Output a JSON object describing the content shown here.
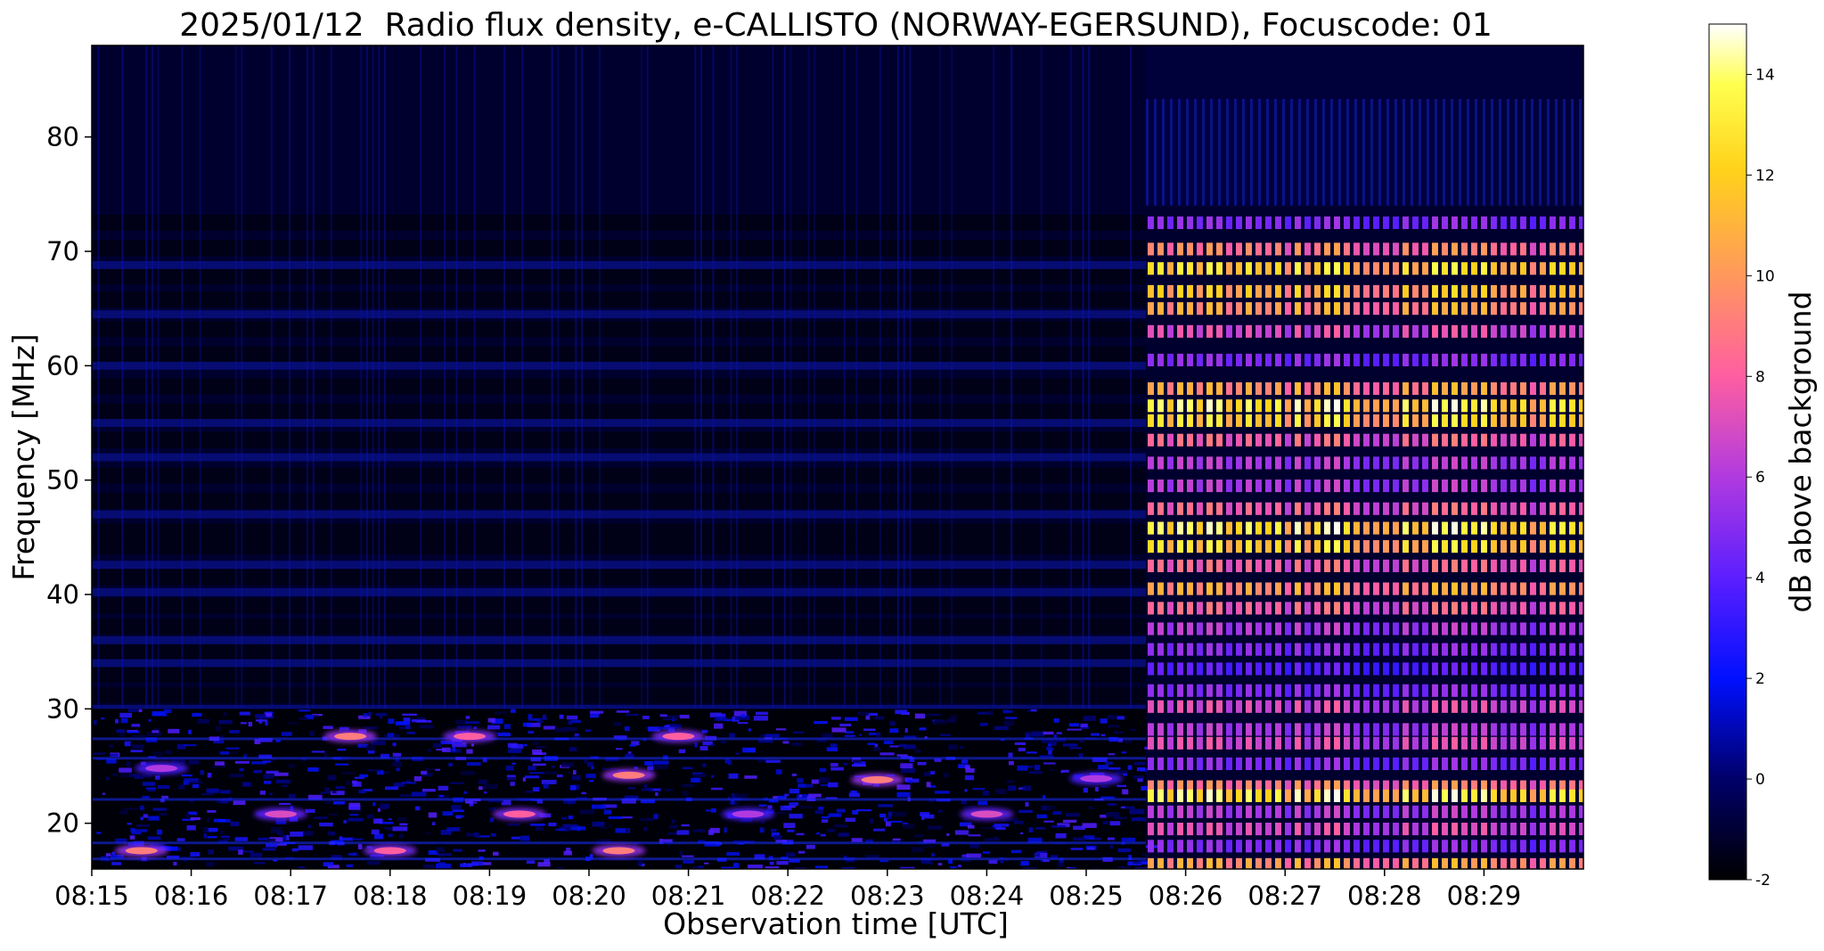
{
  "chart_data": {
    "type": "heatmap",
    "title": "2025/01/12  Radio flux density, e-CALLISTO (NORWAY-EGERSUND), Focuscode: 01",
    "xlabel": "Observation time [UTC]",
    "ylabel": "Frequency [MHz]",
    "x_ticks": [
      "08:15",
      "08:16",
      "08:17",
      "08:18",
      "08:19",
      "08:20",
      "08:21",
      "08:22",
      "08:23",
      "08:24",
      "08:25",
      "08:26",
      "08:27",
      "08:28",
      "08:29"
    ],
    "x_range_minutes": [
      0,
      15
    ],
    "y_ticks": [
      20,
      30,
      40,
      50,
      60,
      70,
      80
    ],
    "ylim": [
      16,
      88
    ],
    "colorbar": {
      "label": "dB above background",
      "ticks": [
        -2,
        0,
        2,
        4,
        6,
        8,
        10,
        12,
        14
      ],
      "range": [
        -2,
        15
      ],
      "colormap": "gnuplot2",
      "colors": [
        "#000000",
        "#0000ff",
        "#8a2bff",
        "#ff55aa",
        "#ffa040",
        "#ffff00",
        "#ffffff"
      ]
    },
    "regions": [
      {
        "description": "quiet background",
        "t_start_min": 0,
        "t_end_min": 10.6,
        "f_start": 30,
        "f_end": 88,
        "db": 0.5
      },
      {
        "description": "noisy low-frequency band with scattered bursts",
        "t_start_min": 0,
        "t_end_min": 10.6,
        "f_start": 16,
        "f_end": 30,
        "db": 1.5
      },
      {
        "description": "broadband pulsed interference",
        "t_start_min": 10.6,
        "t_end_min": 15,
        "f_start": 16,
        "f_end": 74,
        "db": 10
      }
    ],
    "bursts": [
      {
        "t_min": 0.5,
        "f": 17.6,
        "db": 9
      },
      {
        "t_min": 0.7,
        "f": 24.8,
        "db": 6
      },
      {
        "t_min": 1.9,
        "f": 20.8,
        "db": 7
      },
      {
        "t_min": 2.6,
        "f": 27.6,
        "db": 9
      },
      {
        "t_min": 3.0,
        "f": 17.6,
        "db": 8
      },
      {
        "t_min": 3.8,
        "f": 27.6,
        "db": 8
      },
      {
        "t_min": 4.3,
        "f": 20.8,
        "db": 8
      },
      {
        "t_min": 5.3,
        "f": 17.6,
        "db": 9
      },
      {
        "t_min": 5.4,
        "f": 24.2,
        "db": 9
      },
      {
        "t_min": 5.9,
        "f": 27.6,
        "db": 8
      },
      {
        "t_min": 6.6,
        "f": 20.8,
        "db": 6
      },
      {
        "t_min": 7.9,
        "f": 23.8,
        "db": 9
      },
      {
        "t_min": 9.0,
        "f": 20.8,
        "db": 7
      },
      {
        "t_min": 10.1,
        "f": 23.9,
        "db": 6
      }
    ]
  }
}
